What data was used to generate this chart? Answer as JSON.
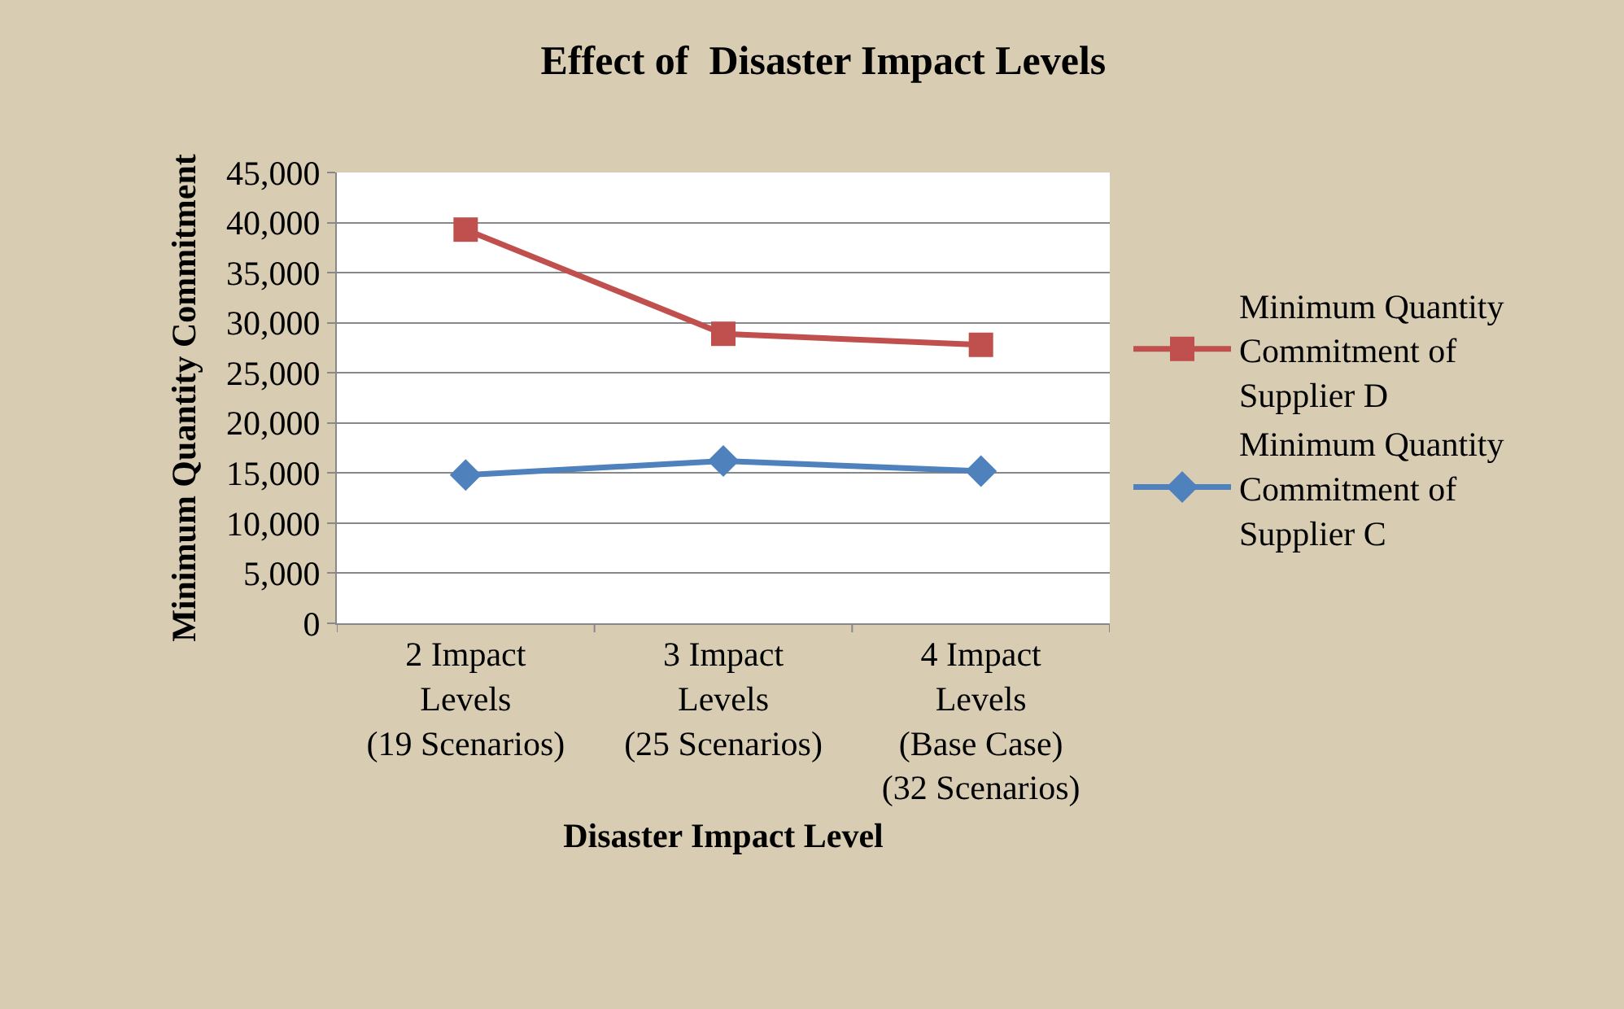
{
  "chart_data": {
    "type": "line",
    "title": "Effect of  Disaster Impact Levels",
    "xlabel": "Disaster Impact Level",
    "ylabel": "Minimum Quantity Commitment",
    "categories": [
      "2 Impact\nLevels\n(19 Scenarios)",
      "3 Impact\nLevels\n(25 Scenarios)",
      "4 Impact\nLevels\n(Base Case)\n(32 Scenarios)"
    ],
    "series": [
      {
        "name": "Minimum Quantity Commitment of Supplier D",
        "color": "#c0504d",
        "marker": "square",
        "values": [
          39300,
          28900,
          27800
        ]
      },
      {
        "name": "Minimum Quantity Commitment of Supplier C",
        "color": "#4f81bd",
        "marker": "diamond",
        "values": [
          14800,
          16200,
          15200
        ]
      }
    ],
    "ylim": [
      0,
      45000
    ],
    "yticks": [
      {
        "value": 0,
        "label": "0"
      },
      {
        "value": 5000,
        "label": "5,000"
      },
      {
        "value": 10000,
        "label": "10,000"
      },
      {
        "value": 15000,
        "label": "15,000"
      },
      {
        "value": 20000,
        "label": "20,000"
      },
      {
        "value": 25000,
        "label": "25,000"
      },
      {
        "value": 30000,
        "label": "30,000"
      },
      {
        "value": 35000,
        "label": "35,000"
      },
      {
        "value": 40000,
        "label": "40,000"
      },
      {
        "value": 45000,
        "label": "45,000"
      }
    ],
    "grid": "y",
    "legend": "right",
    "line_style": "solid"
  }
}
